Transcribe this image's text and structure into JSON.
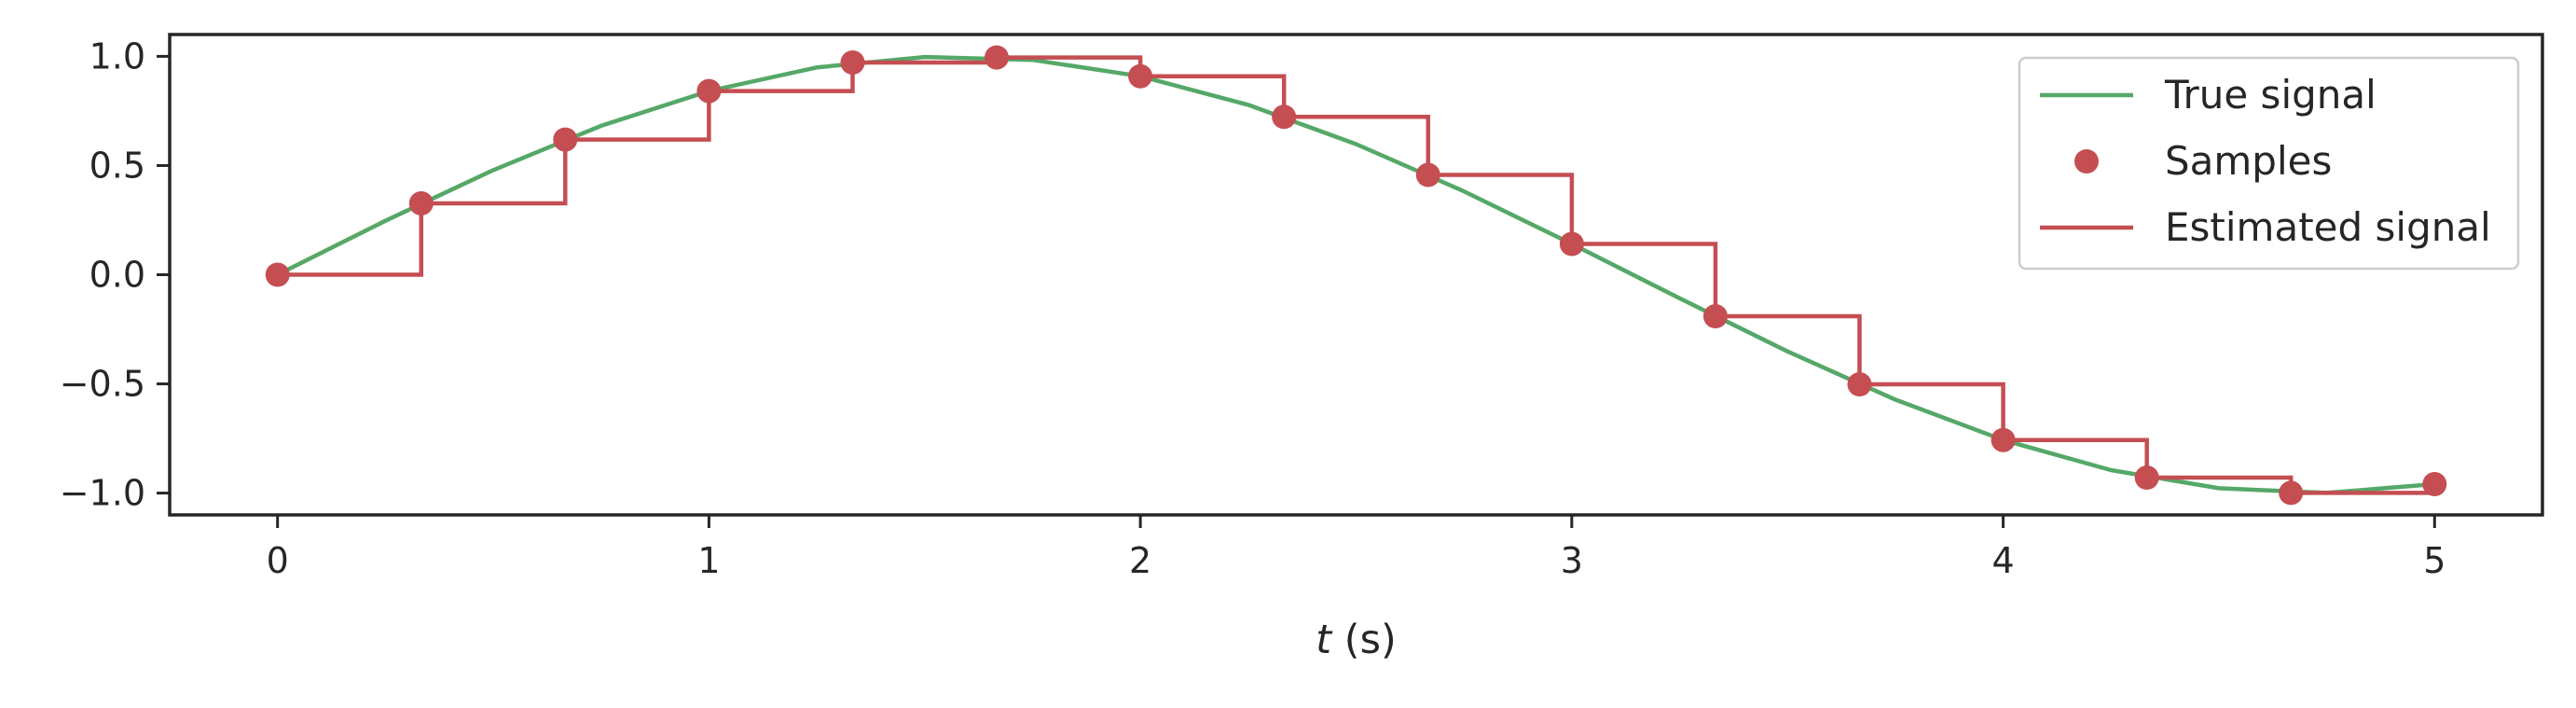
{
  "chart_data": {
    "type": "line",
    "title": "",
    "xlabel": {
      "var": "t",
      "unit": " (s)"
    },
    "ylabel": "",
    "xlim": [
      -0.25,
      5.25
    ],
    "ylim": [
      -1.1,
      1.1
    ],
    "xticks": [
      0,
      1,
      2,
      3,
      4,
      5
    ],
    "xtick_labels": [
      "0",
      "1",
      "2",
      "3",
      "4",
      "5"
    ],
    "yticks": [
      1.0,
      0.5,
      0.0,
      -0.5,
      -1.0
    ],
    "ytick_labels": [
      "1.0",
      "0.5",
      "0.0",
      "−0.5",
      "−1.0"
    ],
    "grid": false,
    "legend_position": "top-right",
    "colors": {
      "true_signal": "#55a868",
      "samples": "#c44e52",
      "estimated": "#c44e52",
      "axes": "#262626"
    },
    "series": [
      {
        "name": "True signal",
        "kind": "line",
        "color": "#55a868",
        "x": [
          0,
          0.25,
          0.5,
          0.75,
          1.0,
          1.25,
          1.5,
          1.75,
          2.0,
          2.25,
          2.5,
          2.75,
          3.0,
          3.25,
          3.5,
          3.75,
          4.0,
          4.25,
          4.5,
          4.75,
          5.0
        ],
        "y": [
          0,
          0.247,
          0.479,
          0.682,
          0.841,
          0.949,
          0.997,
          0.984,
          0.909,
          0.778,
          0.598,
          0.382,
          0.141,
          -0.108,
          -0.351,
          -0.572,
          -0.757,
          -0.895,
          -0.978,
          -0.999,
          -0.959
        ]
      },
      {
        "name": "Samples",
        "kind": "scatter",
        "color": "#c44e52",
        "x": [
          0,
          0.333,
          0.667,
          1.0,
          1.333,
          1.667,
          2.0,
          2.333,
          2.667,
          3.0,
          3.333,
          3.667,
          4.0,
          4.333,
          4.667,
          5.0
        ],
        "y": [
          0,
          0.327,
          0.619,
          0.841,
          0.972,
          0.995,
          0.909,
          0.723,
          0.457,
          0.141,
          -0.19,
          -0.502,
          -0.757,
          -0.929,
          -0.999,
          -0.959
        ]
      },
      {
        "name": "Estimated signal",
        "kind": "step-post",
        "color": "#c44e52",
        "x": [
          0,
          0.333,
          0.667,
          1.0,
          1.333,
          1.667,
          2.0,
          2.333,
          2.667,
          3.0,
          3.333,
          3.667,
          4.0,
          4.333,
          4.667,
          5.0
        ],
        "y": [
          0,
          0.327,
          0.619,
          0.841,
          0.972,
          0.995,
          0.909,
          0.723,
          0.457,
          0.141,
          -0.19,
          -0.502,
          -0.757,
          -0.929,
          -0.999,
          -0.959
        ]
      }
    ]
  }
}
